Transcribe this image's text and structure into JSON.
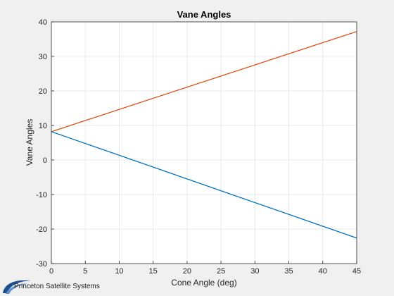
{
  "branding": {
    "logo_text": "Princeton Satellite Systems"
  },
  "chart_data": {
    "type": "line",
    "title": "Vane Angles",
    "xlabel": "Cone Angle (deg)",
    "ylabel": "Vane Angles",
    "xlim": [
      0,
      45
    ],
    "ylim": [
      -30,
      40
    ],
    "xticks": [
      0,
      5,
      10,
      15,
      20,
      25,
      30,
      35,
      40,
      45
    ],
    "yticks": [
      -30,
      -20,
      -10,
      0,
      10,
      20,
      30,
      40
    ],
    "grid": true,
    "series": [
      {
        "color": "#d95319",
        "x": [
          0,
          45
        ],
        "y": [
          8.2,
          37.2
        ]
      },
      {
        "color": "#0072bd",
        "x": [
          0,
          45
        ],
        "y": [
          8.2,
          -22.6
        ]
      }
    ]
  }
}
